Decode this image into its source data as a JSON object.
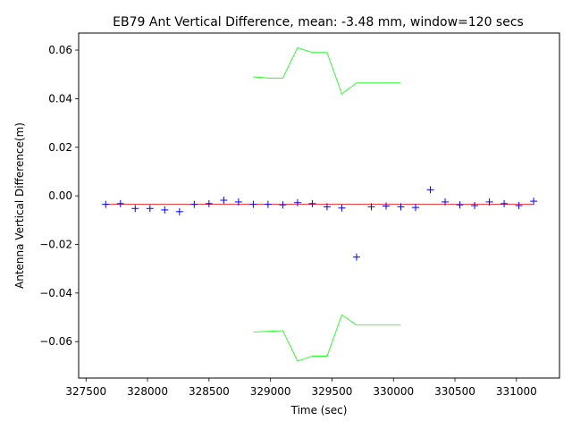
{
  "chart_data": {
    "type": "scatter",
    "title": "EB79 Ant Vertical Difference, mean: -3.48 mm, window=120 secs",
    "xlabel": "Time (sec)",
    "ylabel": "Antenna Vertical Difference(m)",
    "xlim": [
      327440,
      331350
    ],
    "ylim": [
      -0.075,
      0.067
    ],
    "x_ticks": [
      327500,
      328000,
      328500,
      329000,
      329500,
      330000,
      330500,
      331000
    ],
    "x_tick_labels": [
      "327500",
      "328000",
      "328500",
      "329000",
      "329500",
      "330000",
      "330500",
      "331000"
    ],
    "y_ticks": [
      -0.06,
      -0.04,
      -0.02,
      0.0,
      0.02,
      0.04,
      0.06
    ],
    "y_tick_labels": [
      "−0.06",
      "−0.04",
      "−0.02",
      "0.00",
      "0.02",
      "0.04",
      "0.06"
    ],
    "colors": {
      "points": "#0000ff",
      "mean_line": "#ff0000",
      "bounds": "#00ff00"
    },
    "series": [
      {
        "name": "vertical-difference",
        "style": "plus-markers",
        "x": [
          327660,
          327780,
          327900,
          328020,
          328140,
          328260,
          328380,
          328500,
          328620,
          328740,
          328860,
          328980,
          329100,
          329220,
          329340,
          329460,
          329580,
          329700,
          329820,
          329940,
          330060,
          330180,
          330300,
          330420,
          330540,
          330660,
          330780,
          330900,
          331020,
          331140
        ],
        "y": [
          -0.0035,
          -0.0032,
          -0.0052,
          -0.0052,
          -0.0058,
          -0.0065,
          -0.0035,
          -0.0032,
          -0.0018,
          -0.0025,
          -0.0035,
          -0.0035,
          -0.0037,
          -0.0028,
          -0.0032,
          -0.0045,
          -0.005,
          -0.0252,
          -0.0045,
          -0.0042,
          -0.0045,
          -0.0048,
          0.0025,
          -0.0025,
          -0.0037,
          -0.004,
          -0.0025,
          -0.0032,
          -0.004,
          -0.0022
        ]
      },
      {
        "name": "mean",
        "style": "line",
        "x": [
          327660,
          331140
        ],
        "y": [
          -0.00348,
          -0.00348
        ]
      },
      {
        "name": "upper-bound",
        "style": "line",
        "x": [
          328860,
          328980,
          329100,
          329220,
          329340,
          329460,
          329580,
          329700,
          329820,
          329940,
          330060
        ],
        "y": [
          0.049,
          0.0485,
          0.0485,
          0.061,
          0.059,
          0.059,
          0.042,
          0.0465,
          0.0465,
          0.0465,
          0.0465
        ]
      },
      {
        "name": "lower-bound",
        "style": "line",
        "x": [
          328860,
          328980,
          329100,
          329220,
          329340,
          329460,
          329580,
          329700,
          329820,
          329940,
          330060
        ],
        "y": [
          -0.056,
          -0.0558,
          -0.0555,
          -0.068,
          -0.066,
          -0.066,
          -0.049,
          -0.0532,
          -0.0532,
          -0.0532,
          -0.0532
        ]
      }
    ]
  }
}
